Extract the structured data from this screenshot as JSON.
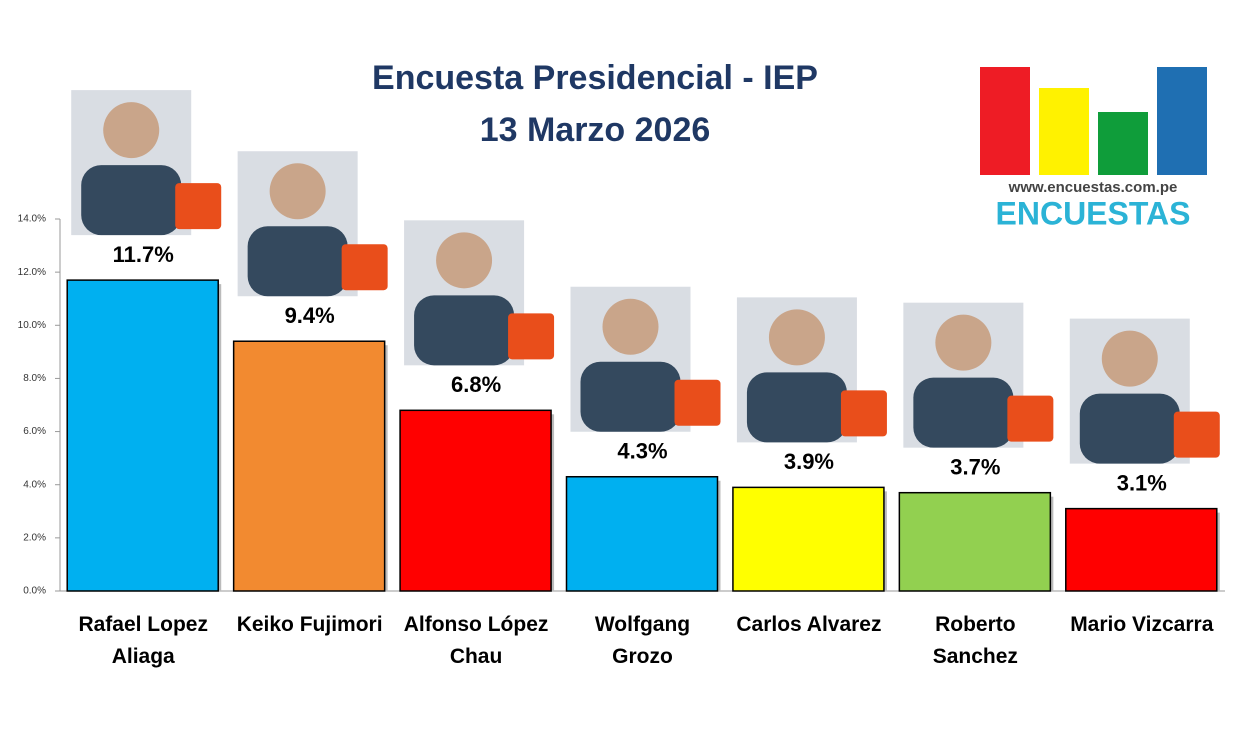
{
  "chart_data": {
    "type": "bar",
    "title": "Encuesta Presidencial - IEP",
    "subtitle": "13 Marzo 2026",
    "categories": [
      "Rafael Lopez Aliaga",
      "Keiko Fujimori",
      "Alfonso López Chau",
      "Wolfgang Grozo",
      "Carlos Alvarez",
      "Roberto Sanchez",
      "Mario Vizcarra"
    ],
    "values": [
      11.7,
      9.4,
      6.8,
      4.3,
      3.9,
      3.7,
      3.1
    ],
    "value_labels": [
      "11.7%",
      "9.4%",
      "6.8%",
      "4.3%",
      "3.9%",
      "3.7%",
      "3.1%"
    ],
    "colors": [
      "#00b0f0",
      "#f28a30",
      "#ff0000",
      "#00b0f0",
      "#ffff00",
      "#92d050",
      "#ff0000"
    ],
    "ylim": [
      0,
      14
    ],
    "yticks": [
      {
        "value": 0,
        "label": "0.0%"
      },
      {
        "value": 2,
        "label": "2.0%"
      },
      {
        "value": 4,
        "label": "4.0%"
      },
      {
        "value": 6,
        "label": "6.0%"
      },
      {
        "value": 8,
        "label": "8.0%"
      },
      {
        "value": 10,
        "label": "10.0%"
      },
      {
        "value": 12,
        "label": "12.0%"
      },
      {
        "value": 14,
        "label": "14.0%"
      }
    ],
    "grid": false
  },
  "logo": {
    "url": "www.encuestas.com.pe",
    "name": "ENCUESTAS"
  }
}
